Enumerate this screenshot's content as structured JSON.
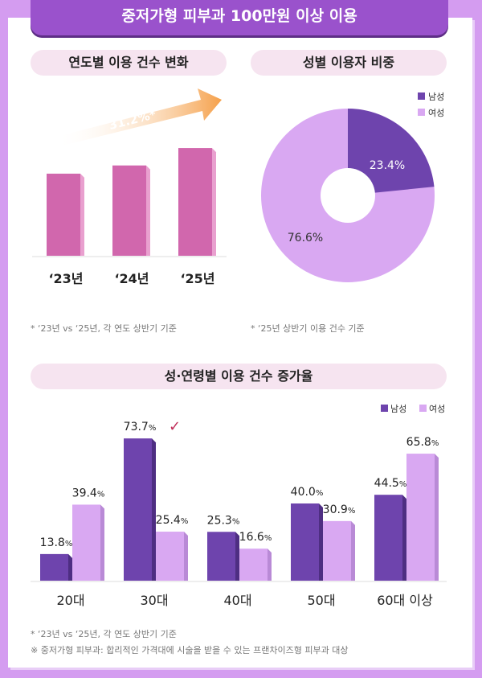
{
  "title": "중저가형 피부과 100만원 이상 이용",
  "sections": {
    "yearly": "연도별 이용 건수 변화",
    "gender": "성별 이용자 비중",
    "age": "성·연령별 이용 건수 증가율"
  },
  "notes": {
    "yearly": "* ‘23년 vs ‘25년, 각 연도 상반기 기준",
    "gender": "* ‘25년 상반기 이용 건수 기준",
    "age1": "* ‘23년 vs ‘25년, 각 연도 상반기 기준",
    "age2": "※ 중저가형 피부과: 합리적인 가격대에 시술을 받을 수 있는 프랜차이즈형 피부과 대상"
  },
  "colors": {
    "male": "#6e44ad",
    "female": "#d9a8f2",
    "yearly_bar": "#d167ad",
    "arrow": "#f5a04a",
    "check": "#c0305a"
  },
  "chart_data": [
    {
      "type": "bar",
      "categories": [
        "‘23년",
        "‘24년",
        "‘25년"
      ],
      "values": [
        100,
        110,
        131.2
      ],
      "annotation": "31.2%*",
      "note": "relative heights estimated; growth ‘23→‘25 is 31.2%"
    },
    {
      "type": "pie",
      "legend": [
        "남성",
        "여성"
      ],
      "values": [
        23.4,
        76.6
      ],
      "labels": [
        "23.4%",
        "76.6%"
      ],
      "legend_position": "top-right"
    },
    {
      "type": "bar",
      "categories": [
        "20대",
        "30대",
        "40대",
        "50대",
        "60대 이상"
      ],
      "series": [
        {
          "name": "남성",
          "values": [
            13.8,
            73.7,
            25.3,
            40.0,
            44.5
          ]
        },
        {
          "name": "여성",
          "values": [
            39.4,
            25.4,
            16.6,
            30.9,
            65.8
          ]
        }
      ],
      "legend_position": "top-right",
      "annotation": "✓"
    }
  ]
}
